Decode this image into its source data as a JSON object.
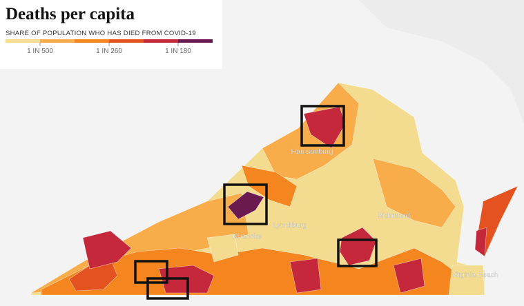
{
  "header": {
    "title": "Deaths per capita",
    "subtitle": "SHARE OF POPULATION WHO HAS DIED FROM COVID-19"
  },
  "legend": {
    "colors": [
      "#f3dc8f",
      "#f9ad4a",
      "#f5851f",
      "#e4521f",
      "#c5283b",
      "#6b1a4f"
    ],
    "labels": [
      "1 IN 500",
      "1 IN 260",
      "1 IN 180"
    ]
  },
  "places": [
    "Harrisonburg",
    "Lynchburg",
    "Roanoke",
    "Richmond",
    "Virginia Beach"
  ]
}
